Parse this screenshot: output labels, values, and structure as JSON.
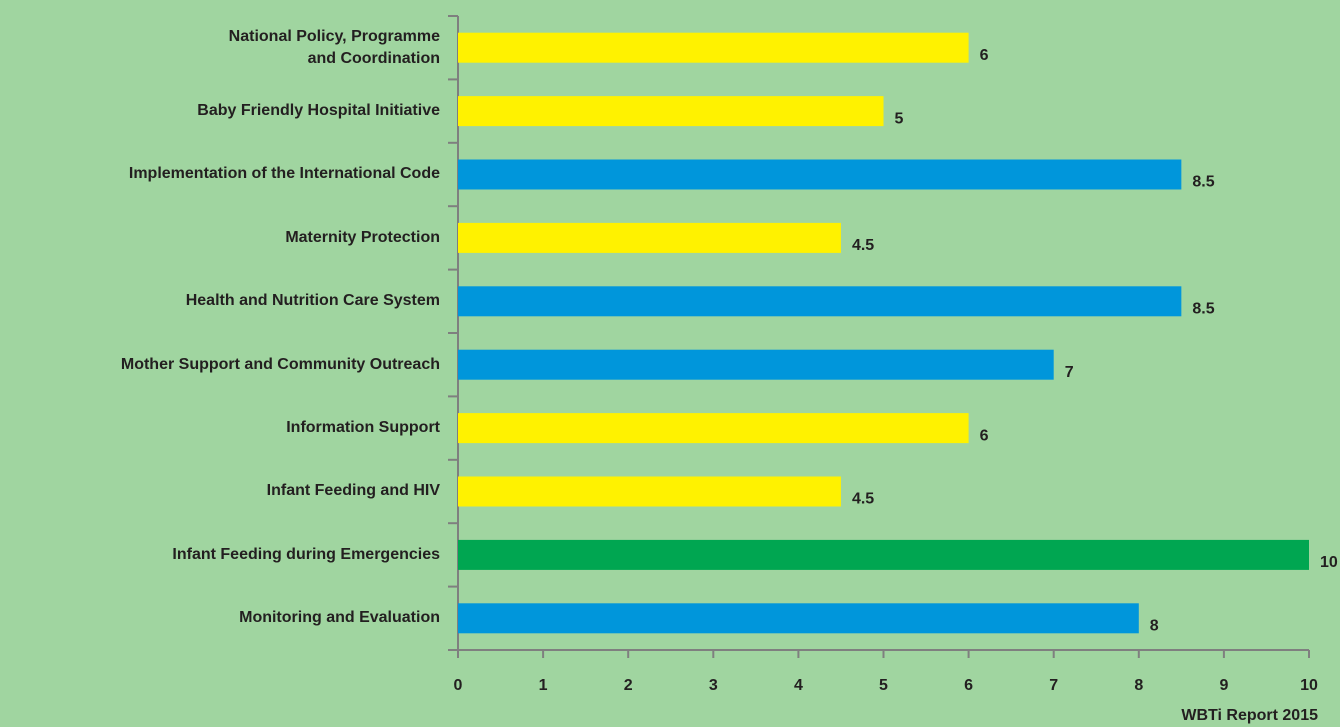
{
  "chart_data": {
    "type": "barh",
    "categories": [
      "National Policy, Programme\nand Coordination",
      "Baby Friendly Hospital Initiative",
      "Implementation of the International Code",
      "Maternity Protection",
      "Health and Nutrition Care System",
      "Mother Support and Community Outreach",
      "Information Support",
      "Infant Feeding and HIV",
      "Infant Feeding during Emergencies",
      "Monitoring and Evaluation"
    ],
    "values": [
      6,
      5,
      8.5,
      4.5,
      8.5,
      7,
      6,
      4.5,
      10,
      8
    ],
    "colors": [
      "#fff200",
      "#fff200",
      "#0096db",
      "#fff200",
      "#0096db",
      "#0096db",
      "#fff200",
      "#fff200",
      "#00a651",
      "#0096db"
    ],
    "xlim": [
      0,
      10
    ],
    "xticks": [
      0,
      1,
      2,
      3,
      4,
      5,
      6,
      7,
      8,
      9,
      10
    ],
    "annotation": "WBTi Report 2015"
  }
}
